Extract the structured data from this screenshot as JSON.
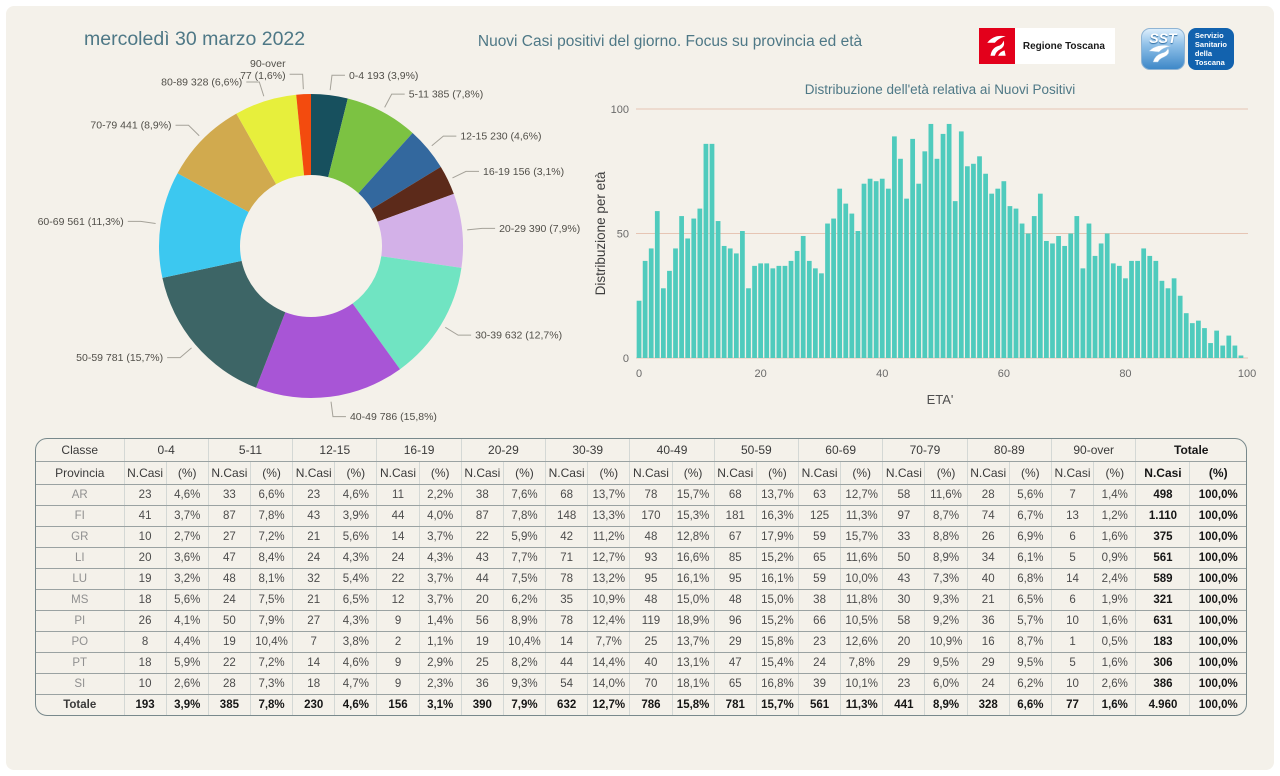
{
  "page": {
    "date_title": "mercoledì 30 marzo 2022",
    "main_title": "Nuovi Casi positivi del giorno. Focus su provincia ed età"
  },
  "logos": {
    "regione": {
      "label": "Regione Toscana"
    },
    "sst": {
      "acronym": "SST",
      "lines": [
        "Servizio",
        "Sanitario",
        "della",
        "Toscana"
      ]
    }
  },
  "colors": {
    "background": "#f4f1ea",
    "heading_teal": "#4e7886",
    "bar_teal": "#4fcbbd",
    "gridline_salmon": "#e6c5b4"
  },
  "chart_data": [
    {
      "type": "pie",
      "subtype": "donut",
      "title": "",
      "slices": [
        {
          "label": "0-4",
          "value": 193,
          "pct": "3,9%",
          "color": "#17505e",
          "wrap": false
        },
        {
          "label": "5-11",
          "value": 385,
          "pct": "7,8%",
          "color": "#7cc242",
          "wrap": false
        },
        {
          "label": "12-15",
          "value": 230,
          "pct": "4,6%",
          "color": "#33689e",
          "wrap": false
        },
        {
          "label": "16-19",
          "value": 156,
          "pct": "3,1%",
          "color": "#5c2a1a",
          "wrap": false
        },
        {
          "label": "20-29",
          "value": 390,
          "pct": "7,9%",
          "color": "#d3b1e8",
          "wrap": false
        },
        {
          "label": "30-39",
          "value": 632,
          "pct": "12,7%",
          "color": "#70e4c2",
          "wrap": false
        },
        {
          "label": "40-49",
          "value": 786,
          "pct": "15,8%",
          "color": "#a855d6",
          "wrap": false
        },
        {
          "label": "50-59",
          "value": 781,
          "pct": "15,7%",
          "color": "#3d6566",
          "wrap": false
        },
        {
          "label": "60-69",
          "value": 561,
          "pct": "11,3%",
          "color": "#3cc8f0",
          "wrap": false
        },
        {
          "label": "70-79",
          "value": 441,
          "pct": "8,9%",
          "color": "#d1aa4e",
          "wrap": false
        },
        {
          "label": "80-89",
          "value": 328,
          "pct": "6,6%",
          "color": "#e7ef3c",
          "wrap": false
        },
        {
          "label": "90-over",
          "value": 77,
          "pct": "1,6%",
          "color": "#f34b0e",
          "wrap": true
        }
      ]
    },
    {
      "type": "bar",
      "title": "Distribuzione dell'età relativa ai Nuovi Positivi",
      "xlabel": "ETA'",
      "ylabel": "Distribuzione per età",
      "x_range": [
        0,
        99
      ],
      "x_ticks": [
        0,
        20,
        40,
        60,
        80,
        100
      ],
      "y_ticks": [
        0,
        50,
        100
      ],
      "ylim": [
        0,
        100
      ],
      "grid": true,
      "bar_color": "#4fcbbd",
      "values": [
        23,
        39,
        44,
        59,
        28,
        35,
        44,
        57,
        48,
        56,
        60,
        86,
        86,
        55,
        45,
        44,
        42,
        51,
        28,
        37,
        38,
        38,
        36,
        37,
        37,
        39,
        43,
        49,
        39,
        36,
        34,
        54,
        56,
        68,
        62,
        58,
        51,
        70,
        72,
        71,
        72,
        68,
        89,
        80,
        64,
        88,
        70,
        83,
        94,
        80,
        90,
        94,
        63,
        91,
        77,
        78,
        81,
        74,
        66,
        68,
        71,
        61,
        60,
        54,
        50,
        57,
        66,
        47,
        46,
        49,
        45,
        50,
        57,
        36,
        54,
        41,
        46,
        50,
        38,
        37,
        32,
        39,
        39,
        44,
        41,
        39,
        31,
        28,
        32,
        25,
        18,
        14,
        15,
        12,
        6,
        11,
        5,
        9,
        5,
        1
      ]
    }
  ],
  "table": {
    "header_row1_label": "Classe",
    "header_row2_label": "Provincia",
    "groups": [
      "0-4",
      "5-11",
      "12-15",
      "16-19",
      "20-29",
      "30-39",
      "40-49",
      "50-59",
      "60-69",
      "70-79",
      "80-89",
      "90-over",
      "Totale"
    ],
    "subheaders": [
      "N.Casi",
      "(%)"
    ],
    "rows": [
      {
        "provincia": "AR",
        "bold": false,
        "cells": [
          "23",
          "4,6%",
          "33",
          "6,6%",
          "23",
          "4,6%",
          "11",
          "2,2%",
          "38",
          "7,6%",
          "68",
          "13,7%",
          "78",
          "15,7%",
          "68",
          "13,7%",
          "63",
          "12,7%",
          "58",
          "11,6%",
          "28",
          "5,6%",
          "7",
          "1,4%",
          "498",
          "100,0%"
        ]
      },
      {
        "provincia": "FI",
        "bold": false,
        "cells": [
          "41",
          "3,7%",
          "87",
          "7,8%",
          "43",
          "3,9%",
          "44",
          "4,0%",
          "87",
          "7,8%",
          "148",
          "13,3%",
          "170",
          "15,3%",
          "181",
          "16,3%",
          "125",
          "11,3%",
          "97",
          "8,7%",
          "74",
          "6,7%",
          "13",
          "1,2%",
          "1.110",
          "100,0%"
        ]
      },
      {
        "provincia": "GR",
        "bold": false,
        "cells": [
          "10",
          "2,7%",
          "27",
          "7,2%",
          "21",
          "5,6%",
          "14",
          "3,7%",
          "22",
          "5,9%",
          "42",
          "11,2%",
          "48",
          "12,8%",
          "67",
          "17,9%",
          "59",
          "15,7%",
          "33",
          "8,8%",
          "26",
          "6,9%",
          "6",
          "1,6%",
          "375",
          "100,0%"
        ]
      },
      {
        "provincia": "LI",
        "bold": false,
        "cells": [
          "20",
          "3,6%",
          "47",
          "8,4%",
          "24",
          "4,3%",
          "24",
          "4,3%",
          "43",
          "7,7%",
          "71",
          "12,7%",
          "93",
          "16,6%",
          "85",
          "15,2%",
          "65",
          "11,6%",
          "50",
          "8,9%",
          "34",
          "6,1%",
          "5",
          "0,9%",
          "561",
          "100,0%"
        ]
      },
      {
        "provincia": "LU",
        "bold": false,
        "cells": [
          "19",
          "3,2%",
          "48",
          "8,1%",
          "32",
          "5,4%",
          "22",
          "3,7%",
          "44",
          "7,5%",
          "78",
          "13,2%",
          "95",
          "16,1%",
          "95",
          "16,1%",
          "59",
          "10,0%",
          "43",
          "7,3%",
          "40",
          "6,8%",
          "14",
          "2,4%",
          "589",
          "100,0%"
        ]
      },
      {
        "provincia": "MS",
        "bold": false,
        "cells": [
          "18",
          "5,6%",
          "24",
          "7,5%",
          "21",
          "6,5%",
          "12",
          "3,7%",
          "20",
          "6,2%",
          "35",
          "10,9%",
          "48",
          "15,0%",
          "48",
          "15,0%",
          "38",
          "11,8%",
          "30",
          "9,3%",
          "21",
          "6,5%",
          "6",
          "1,9%",
          "321",
          "100,0%"
        ]
      },
      {
        "provincia": "PI",
        "bold": false,
        "cells": [
          "26",
          "4,1%",
          "50",
          "7,9%",
          "27",
          "4,3%",
          "9",
          "1,4%",
          "56",
          "8,9%",
          "78",
          "12,4%",
          "119",
          "18,9%",
          "96",
          "15,2%",
          "66",
          "10,5%",
          "58",
          "9,2%",
          "36",
          "5,7%",
          "10",
          "1,6%",
          "631",
          "100,0%"
        ]
      },
      {
        "provincia": "PO",
        "bold": false,
        "cells": [
          "8",
          "4,4%",
          "19",
          "10,4%",
          "7",
          "3,8%",
          "2",
          "1,1%",
          "19",
          "10,4%",
          "14",
          "7,7%",
          "25",
          "13,7%",
          "29",
          "15,8%",
          "23",
          "12,6%",
          "20",
          "10,9%",
          "16",
          "8,7%",
          "1",
          "0,5%",
          "183",
          "100,0%"
        ]
      },
      {
        "provincia": "PT",
        "bold": false,
        "cells": [
          "18",
          "5,9%",
          "22",
          "7,2%",
          "14",
          "4,6%",
          "9",
          "2,9%",
          "25",
          "8,2%",
          "44",
          "14,4%",
          "40",
          "13,1%",
          "47",
          "15,4%",
          "24",
          "7,8%",
          "29",
          "9,5%",
          "29",
          "9,5%",
          "5",
          "1,6%",
          "306",
          "100,0%"
        ]
      },
      {
        "provincia": "SI",
        "bold": false,
        "cells": [
          "10",
          "2,6%",
          "28",
          "7,3%",
          "18",
          "4,7%",
          "9",
          "2,3%",
          "36",
          "9,3%",
          "54",
          "14,0%",
          "70",
          "18,1%",
          "65",
          "16,8%",
          "39",
          "10,1%",
          "23",
          "6,0%",
          "24",
          "6,2%",
          "10",
          "2,6%",
          "386",
          "100,0%"
        ]
      },
      {
        "provincia": "Totale",
        "bold": true,
        "cells": [
          "193",
          "3,9%",
          "385",
          "7,8%",
          "230",
          "4,6%",
          "156",
          "3,1%",
          "390",
          "7,9%",
          "632",
          "12,7%",
          "786",
          "15,8%",
          "781",
          "15,7%",
          "561",
          "11,3%",
          "441",
          "8,9%",
          "328",
          "6,6%",
          "77",
          "1,6%",
          "4.960",
          "100,0%"
        ]
      }
    ]
  }
}
